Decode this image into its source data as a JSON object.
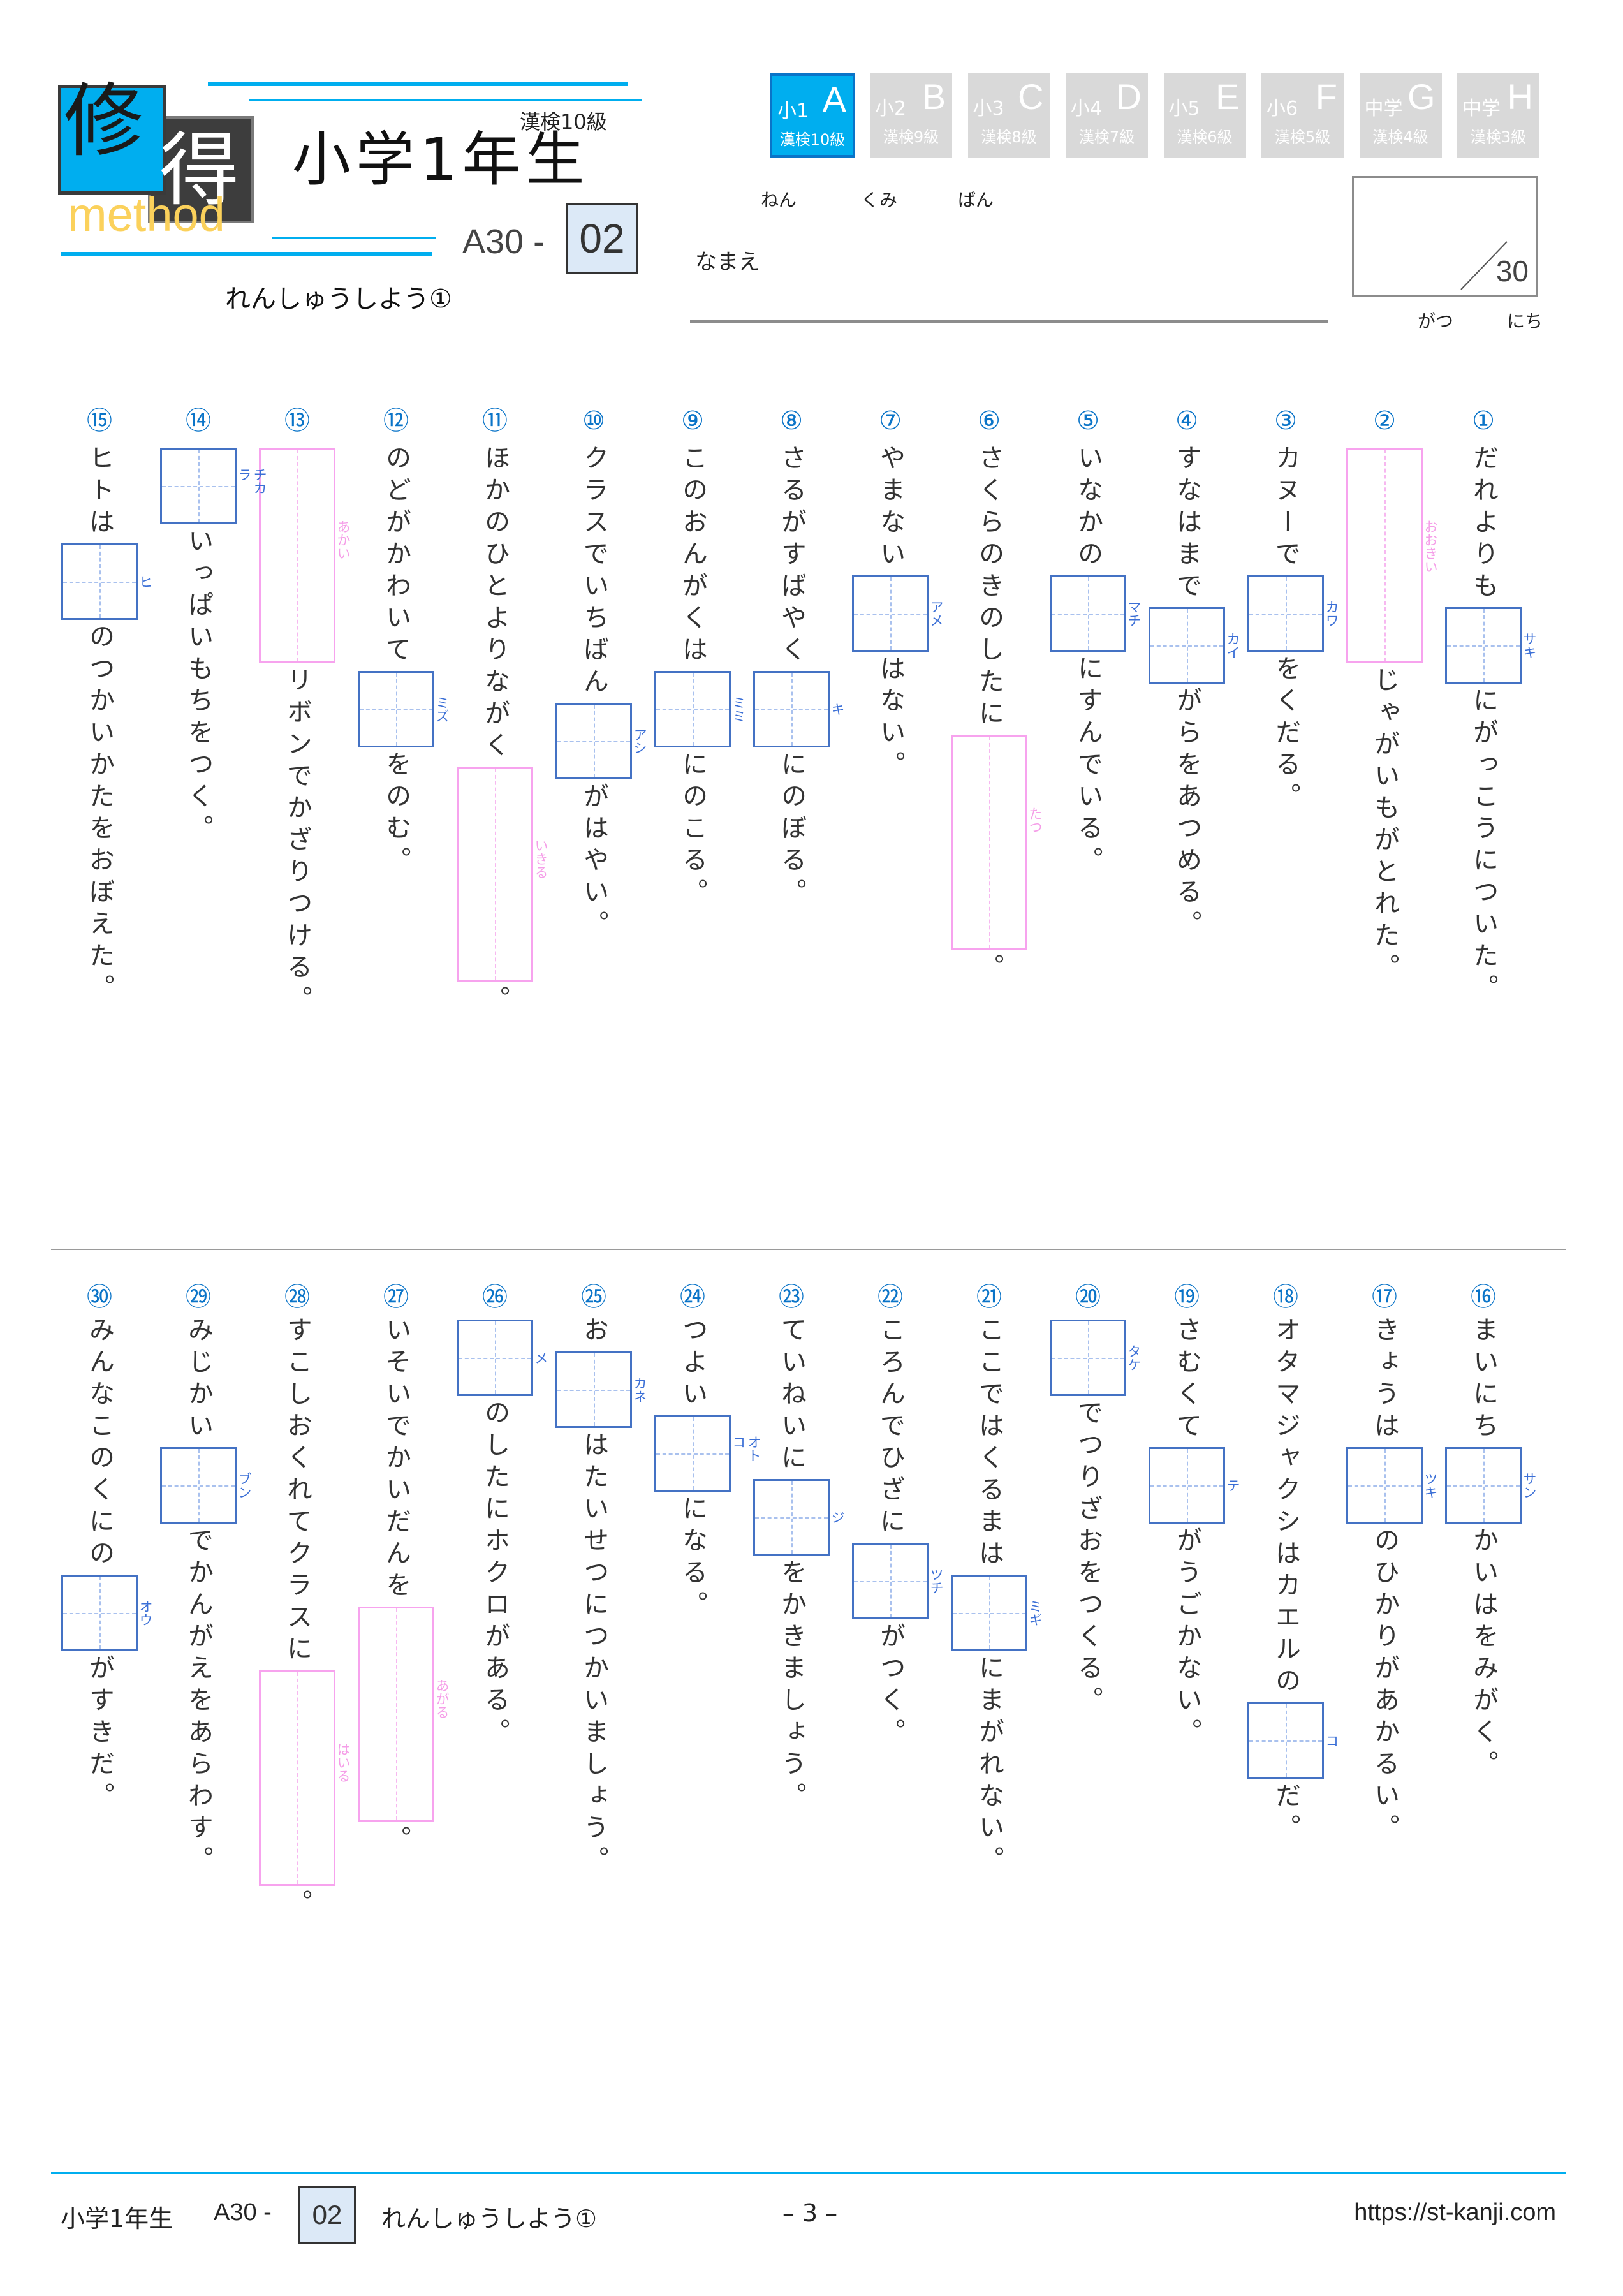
{
  "colors": {
    "accent": "#00aeef",
    "kanji_box": "#4472c4",
    "okurigana_box": "#f7a3ee",
    "number": "#0a74c8",
    "logo_text": "#fbd15b"
  },
  "logo": {
    "kanji1": "修",
    "kanji2": "得",
    "word": "method"
  },
  "header": {
    "grade_label": "漢検10級",
    "title": "小学1年生",
    "code_prefix": "A30 -",
    "code_number": "02",
    "subtitle": "れんしゅうしよう①"
  },
  "tabs": [
    {
      "top": "小1",
      "letter": "A",
      "bottom": "漢検10級",
      "active": true
    },
    {
      "top": "小2",
      "letter": "B",
      "bottom": "漢検9級",
      "active": false
    },
    {
      "top": "小3",
      "letter": "C",
      "bottom": "漢検8級",
      "active": false
    },
    {
      "top": "小4",
      "letter": "D",
      "bottom": "漢検7級",
      "active": false
    },
    {
      "top": "小5",
      "letter": "E",
      "bottom": "漢検6級",
      "active": false
    },
    {
      "top": "小6",
      "letter": "F",
      "bottom": "漢検5級",
      "active": false
    },
    {
      "top": "中学",
      "letter": "G",
      "bottom": "漢検4級",
      "active": false
    },
    {
      "top": "中学",
      "letter": "H",
      "bottom": "漢検3級",
      "active": false
    }
  ],
  "student": {
    "nen": "ねん",
    "kumi": "くみ",
    "ban": "ばん",
    "name_label": "なまえ",
    "gatsu": "がつ",
    "nichi": "にち",
    "score_total": "30"
  },
  "questions": [
    {
      "num": "①",
      "parts": [
        {
          "type": "text",
          "text": "だれよりも"
        },
        {
          "type": "square",
          "reading": "サキ"
        },
        {
          "type": "text",
          "text": "にがっこうについた。"
        }
      ]
    },
    {
      "num": "②",
      "parts": [
        {
          "type": "tall",
          "reading": "おおきい"
        },
        {
          "type": "text",
          "text": "じゃがいもがとれた。"
        }
      ]
    },
    {
      "num": "③",
      "parts": [
        {
          "type": "text",
          "text": "カヌーで"
        },
        {
          "type": "square",
          "reading": "カワ"
        },
        {
          "type": "text",
          "text": "をくだる。"
        }
      ]
    },
    {
      "num": "④",
      "parts": [
        {
          "type": "text",
          "text": "すなはまで"
        },
        {
          "type": "square",
          "reading": "カイ"
        },
        {
          "type": "text",
          "text": "がらをあつめる。"
        }
      ]
    },
    {
      "num": "⑤",
      "parts": [
        {
          "type": "text",
          "text": "いなかの"
        },
        {
          "type": "square",
          "reading": "マチ"
        },
        {
          "type": "text",
          "text": "にすんでいる。"
        }
      ]
    },
    {
      "num": "⑥",
      "parts": [
        {
          "type": "text",
          "text": "さくらのきのしたに"
        },
        {
          "type": "tall",
          "reading": "たつ"
        },
        {
          "type": "text",
          "text": "。"
        }
      ]
    },
    {
      "num": "⑦",
      "parts": [
        {
          "type": "text",
          "text": "やまない"
        },
        {
          "type": "square",
          "reading": "アメ"
        },
        {
          "type": "text",
          "text": "はない。"
        }
      ]
    },
    {
      "num": "⑧",
      "parts": [
        {
          "type": "text",
          "text": "さるがすばやく"
        },
        {
          "type": "square",
          "reading": "キ"
        },
        {
          "type": "text",
          "text": "にのぼる。"
        }
      ]
    },
    {
      "num": "⑨",
      "parts": [
        {
          "type": "text",
          "text": "このおんがくは"
        },
        {
          "type": "square",
          "reading": "ミミ"
        },
        {
          "type": "text",
          "text": "にのこる。"
        }
      ]
    },
    {
      "num": "⑩",
      "parts": [
        {
          "type": "text",
          "text": "クラスでいちばん"
        },
        {
          "type": "square",
          "reading": "アシ"
        },
        {
          "type": "text",
          "text": "がはやい。"
        }
      ]
    },
    {
      "num": "⑪",
      "parts": [
        {
          "type": "text",
          "text": "ほかのひとよりながく"
        },
        {
          "type": "tall",
          "reading": "いきる"
        },
        {
          "type": "text",
          "text": "。"
        }
      ]
    },
    {
      "num": "⑫",
      "parts": [
        {
          "type": "text",
          "text": "のどがかわいて"
        },
        {
          "type": "square",
          "reading": "ミズ"
        },
        {
          "type": "text",
          "text": "をのむ。"
        }
      ]
    },
    {
      "num": "⑬",
      "parts": [
        {
          "type": "tall",
          "reading": "あかい"
        },
        {
          "type": "text",
          "text": "リボンでかざりつける。"
        }
      ]
    },
    {
      "num": "⑭",
      "parts": [
        {
          "type": "square",
          "reading": "チカラ"
        },
        {
          "type": "text",
          "text": "いっぱいもちをつく。"
        }
      ]
    },
    {
      "num": "⑮",
      "parts": [
        {
          "type": "text",
          "text": "ヒトは"
        },
        {
          "type": "square",
          "reading": "ヒ"
        },
        {
          "type": "text",
          "text": "のつかいかたをおぼえた。"
        }
      ]
    },
    {
      "num": "⑯",
      "parts": [
        {
          "type": "text",
          "text": "まいにち"
        },
        {
          "type": "square",
          "reading": "サン"
        },
        {
          "type": "text",
          "text": "かいはをみがく。"
        }
      ]
    },
    {
      "num": "⑰",
      "parts": [
        {
          "type": "text",
          "text": "きょうは"
        },
        {
          "type": "square",
          "reading": "ツキ"
        },
        {
          "type": "text",
          "text": "のひかりがあかるい。"
        }
      ]
    },
    {
      "num": "⑱",
      "parts": [
        {
          "type": "text",
          "text": "オタマジャクシはカエルの"
        },
        {
          "type": "square",
          "reading": "コ"
        },
        {
          "type": "text",
          "text": "だ。"
        }
      ]
    },
    {
      "num": "⑲",
      "parts": [
        {
          "type": "text",
          "text": "さむくて"
        },
        {
          "type": "square",
          "reading": "テ"
        },
        {
          "type": "text",
          "text": "がうごかない。"
        }
      ]
    },
    {
      "num": "⑳",
      "parts": [
        {
          "type": "square",
          "reading": "タケ"
        },
        {
          "type": "text",
          "text": "でつりざおをつくる。"
        }
      ]
    },
    {
      "num": "㉑",
      "parts": [
        {
          "type": "text",
          "text": "ここではくるまは"
        },
        {
          "type": "square",
          "reading": "ミギ"
        },
        {
          "type": "text",
          "text": "にまがれない。"
        }
      ]
    },
    {
      "num": "㉒",
      "parts": [
        {
          "type": "text",
          "text": "ころんでひざに"
        },
        {
          "type": "square",
          "reading": "ツチ"
        },
        {
          "type": "text",
          "text": "がつく。"
        }
      ]
    },
    {
      "num": "㉓",
      "parts": [
        {
          "type": "text",
          "text": "ていねいに"
        },
        {
          "type": "square",
          "reading": "ジ"
        },
        {
          "type": "text",
          "text": "をかきましょう。"
        }
      ]
    },
    {
      "num": "㉔",
      "parts": [
        {
          "type": "text",
          "text": "つよい"
        },
        {
          "type": "square",
          "reading": "オトコ"
        },
        {
          "type": "text",
          "text": "になる。"
        }
      ]
    },
    {
      "num": "㉕",
      "parts": [
        {
          "type": "text",
          "text": "お"
        },
        {
          "type": "square",
          "reading": "カネ"
        },
        {
          "type": "text",
          "text": "はたいせつにつかいましょう。"
        }
      ]
    },
    {
      "num": "㉖",
      "parts": [
        {
          "type": "square",
          "reading": "メ"
        },
        {
          "type": "text",
          "text": "のしたにホクロがある。"
        }
      ]
    },
    {
      "num": "㉗",
      "parts": [
        {
          "type": "text",
          "text": "いそいでかいだんを"
        },
        {
          "type": "tall",
          "reading": "あがる"
        },
        {
          "type": "text",
          "text": "。"
        }
      ]
    },
    {
      "num": "㉘",
      "parts": [
        {
          "type": "text",
          "text": "すこしおくれてクラスに"
        },
        {
          "type": "tall",
          "reading": "はいる"
        },
        {
          "type": "text",
          "text": "。"
        }
      ]
    },
    {
      "num": "㉙",
      "parts": [
        {
          "type": "text",
          "text": "みじかい"
        },
        {
          "type": "square",
          "reading": "ブン"
        },
        {
          "type": "text",
          "text": "でかんがえをあらわす。"
        }
      ]
    },
    {
      "num": "㉚",
      "parts": [
        {
          "type": "text",
          "text": "みんなこのくにの"
        },
        {
          "type": "square",
          "reading": "オウ"
        },
        {
          "type": "text",
          "text": "がすきだ。"
        }
      ]
    }
  ],
  "footer": {
    "title": "小学1年生",
    "code_prefix": "A30 -",
    "code_number": "02",
    "subtitle": "れんしゅうしよう①",
    "page": "– 3 –",
    "url": "https://st-kanji.com"
  }
}
